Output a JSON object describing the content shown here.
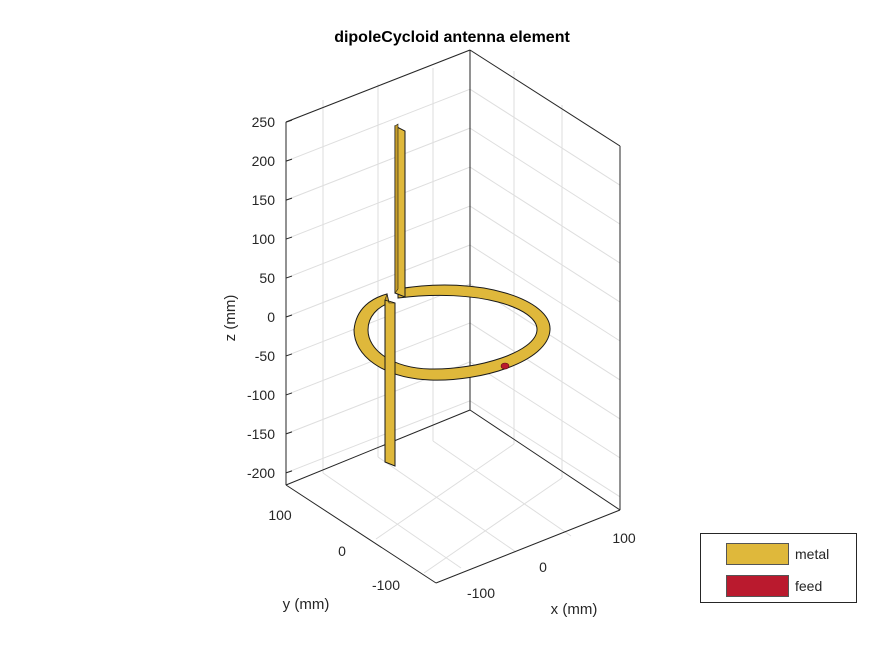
{
  "chart_data": {
    "type": "3d-surface",
    "title": "dipoleCycloid antenna element",
    "xlabel": "x (mm)",
    "ylabel": "y (mm)",
    "zlabel": "z (mm)",
    "x_ticks": [
      -100,
      0,
      100
    ],
    "y_ticks": [
      -100,
      0,
      100
    ],
    "z_ticks": [
      -200,
      -150,
      -100,
      -50,
      0,
      50,
      100,
      150,
      200,
      250
    ],
    "xlim": [
      -150,
      150
    ],
    "ylim": [
      -150,
      150
    ],
    "zlim": [
      -215,
      250
    ],
    "grid": true,
    "legend": {
      "placement": "bottom-right",
      "entries": [
        {
          "label": "metal",
          "color": "#DFB83B"
        },
        {
          "label": "feed",
          "color": "#BA1A2E"
        }
      ]
    },
    "geometry": {
      "loop_radius_mm": 100,
      "strip_width_mm": 10,
      "dipole_top_z_mm": 245,
      "dipole_bottom_z_mm": -210,
      "feed_position_mm": [
        60,
        80,
        0
      ]
    }
  }
}
